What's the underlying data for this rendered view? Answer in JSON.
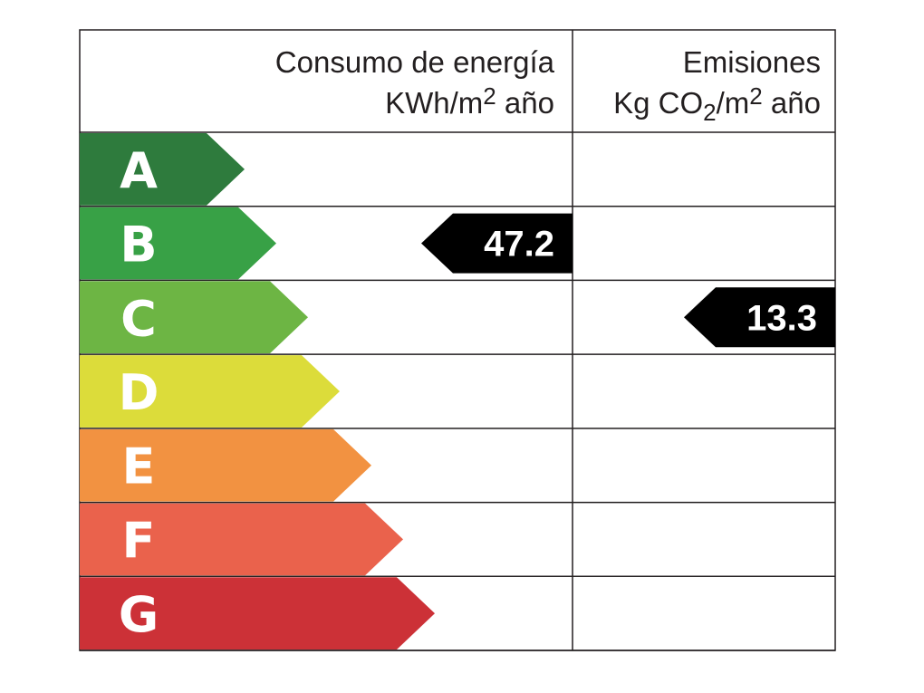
{
  "header": {
    "energy_title": "Consumo de energía",
    "energy_unit": [
      "KWh/m",
      "2",
      " año"
    ],
    "emissions_title": "Emisiones",
    "emissions_unit": [
      "Kg CO",
      "2",
      "/m",
      "2",
      " año"
    ]
  },
  "rows": [
    {
      "letter": "A",
      "color": "#2e7b3d"
    },
    {
      "letter": "B",
      "color": "#38a146"
    },
    {
      "letter": "C",
      "color": "#6db544"
    },
    {
      "letter": "D",
      "color": "#dcdc3a"
    },
    {
      "letter": "E",
      "color": "#f29241"
    },
    {
      "letter": "F",
      "color": "#ea624c"
    },
    {
      "letter": "G",
      "color": "#cc3137"
    }
  ],
  "energy": {
    "rating": "B",
    "value": "47.2"
  },
  "emissions": {
    "rating": "C",
    "value": "13.3"
  }
}
